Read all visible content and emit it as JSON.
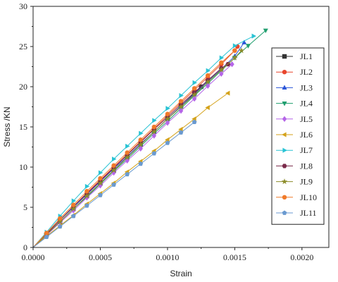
{
  "chart_data": {
    "type": "line",
    "xlabel": "Strain",
    "ylabel": "Stress /KN",
    "xlim": [
      0,
      0.0022
    ],
    "ylim": [
      0,
      30
    ],
    "xticks": [
      "0.0000",
      "0.0005",
      "0.0010",
      "0.0015",
      "0.0020"
    ],
    "yticks": [
      "0",
      "5",
      "10",
      "15",
      "20",
      "25",
      "30"
    ],
    "legend_position": "right",
    "series": [
      {
        "name": "JL1",
        "color": "#333333",
        "marker": "square",
        "x": [
          0,
          0.0001,
          0.0002,
          0.0003,
          0.0004,
          0.0005,
          0.0006,
          0.0007,
          0.0008,
          0.0009,
          0.001,
          0.0011,
          0.0012,
          0.00125
        ],
        "y": [
          0,
          1.6,
          3.2,
          4.8,
          6.4,
          8.0,
          9.6,
          11.2,
          12.8,
          14.4,
          16.0,
          17.6,
          19.2,
          20.0
        ]
      },
      {
        "name": "JL2",
        "color": "#e8452c",
        "marker": "circle",
        "x": [
          0,
          0.0001,
          0.0002,
          0.0003,
          0.0004,
          0.0005,
          0.0006,
          0.0007,
          0.0008,
          0.0009,
          0.001,
          0.0011,
          0.0012,
          0.0013,
          0.0014,
          0.0015,
          0.00152
        ],
        "y": [
          0,
          1.7,
          3.4,
          5.1,
          6.8,
          8.4,
          10.0,
          11.6,
          13.2,
          14.8,
          16.4,
          18.0,
          19.6,
          21.2,
          22.8,
          24.5,
          25.0
        ]
      },
      {
        "name": "JL3",
        "color": "#2a55d8",
        "marker": "triangle-up",
        "x": [
          0,
          0.0001,
          0.0002,
          0.0003,
          0.0004,
          0.0005,
          0.0006,
          0.0007,
          0.0008,
          0.0009,
          0.001,
          0.0011,
          0.0012,
          0.0013,
          0.0014,
          0.0015,
          0.00157
        ],
        "y": [
          0,
          1.7,
          3.4,
          5.0,
          6.6,
          8.2,
          9.8,
          11.3,
          12.9,
          14.4,
          16.0,
          17.6,
          19.1,
          20.7,
          22.2,
          23.8,
          25.5
        ]
      },
      {
        "name": "JL4",
        "color": "#1f9e6e",
        "marker": "triangle-down",
        "x": [
          0,
          0.0001,
          0.0002,
          0.0003,
          0.0004,
          0.0005,
          0.0006,
          0.0007,
          0.0008,
          0.0009,
          0.001,
          0.0011,
          0.0012,
          0.0013,
          0.0014,
          0.0015,
          0.0016,
          0.00173
        ],
        "y": [
          0,
          1.6,
          3.2,
          4.8,
          6.3,
          7.9,
          9.5,
          11.0,
          12.6,
          14.2,
          15.7,
          17.3,
          18.9,
          20.4,
          22.0,
          23.6,
          25.1,
          27.0
        ]
      },
      {
        "name": "JL5",
        "color": "#b565e8",
        "marker": "diamond",
        "x": [
          0,
          0.0001,
          0.0002,
          0.0003,
          0.0004,
          0.0005,
          0.0006,
          0.0007,
          0.0008,
          0.0009,
          0.001,
          0.0011,
          0.0012,
          0.0013,
          0.0014,
          0.00148
        ],
        "y": [
          0,
          1.5,
          3.1,
          4.6,
          6.2,
          7.7,
          9.3,
          10.8,
          12.3,
          13.9,
          15.5,
          17.0,
          18.5,
          20.1,
          21.6,
          22.8
        ]
      },
      {
        "name": "JL6",
        "color": "#d4a21a",
        "marker": "triangle-left",
        "x": [
          0,
          0.0001,
          0.0002,
          0.0003,
          0.0004,
          0.0005,
          0.0006,
          0.0007,
          0.0008,
          0.0009,
          0.001,
          0.0011,
          0.0012,
          0.0013,
          0.00145
        ],
        "y": [
          0,
          1.4,
          2.7,
          4.0,
          5.4,
          6.7,
          8.0,
          9.4,
          10.7,
          12.0,
          13.4,
          14.7,
          16.0,
          17.4,
          19.2
        ]
      },
      {
        "name": "JL7",
        "color": "#29c3d4",
        "marker": "triangle-right",
        "x": [
          0,
          0.0001,
          0.0002,
          0.0003,
          0.0004,
          0.0005,
          0.0006,
          0.0007,
          0.0008,
          0.0009,
          0.001,
          0.0011,
          0.0012,
          0.0013,
          0.0014,
          0.0015,
          0.00164
        ],
        "y": [
          0,
          1.9,
          3.9,
          5.8,
          7.6,
          9.3,
          11.0,
          12.6,
          14.2,
          15.8,
          17.3,
          18.9,
          20.5,
          22.0,
          23.6,
          25.1,
          26.3
        ]
      },
      {
        "name": "JL8",
        "color": "#7a2a4a",
        "marker": "hexagon",
        "x": [
          0,
          0.0001,
          0.0002,
          0.0003,
          0.0004,
          0.0005,
          0.0006,
          0.0007,
          0.0008,
          0.0009,
          0.001,
          0.0011,
          0.0012,
          0.0013,
          0.0014,
          0.00145
        ],
        "y": [
          0,
          1.7,
          3.4,
          5.1,
          6.7,
          8.3,
          9.9,
          11.5,
          13.1,
          14.7,
          16.2,
          17.8,
          19.3,
          20.8,
          22.3,
          22.8
        ]
      },
      {
        "name": "JL9",
        "color": "#8c8c2a",
        "marker": "star",
        "x": [
          0,
          0.0001,
          0.0002,
          0.0003,
          0.0004,
          0.0005,
          0.0006,
          0.0007,
          0.0008,
          0.0009,
          0.001,
          0.0011,
          0.0012,
          0.0013,
          0.0014,
          0.0015,
          0.00155
        ],
        "y": [
          0,
          1.6,
          3.2,
          4.8,
          6.4,
          8.0,
          9.6,
          11.2,
          12.8,
          14.4,
          16.0,
          17.5,
          19.0,
          20.6,
          22.1,
          23.6,
          24.5
        ]
      },
      {
        "name": "JL10",
        "color": "#f07a2a",
        "marker": "circle",
        "x": [
          0,
          0.0001,
          0.0002,
          0.0003,
          0.0004,
          0.0005,
          0.0006,
          0.0007,
          0.0008,
          0.0009,
          0.001,
          0.0011,
          0.0012,
          0.0013,
          0.0014,
          0.0015
        ],
        "y": [
          0,
          1.8,
          3.6,
          5.3,
          7.0,
          8.6,
          10.2,
          11.8,
          13.4,
          15.0,
          16.6,
          18.2,
          19.8,
          21.4,
          23.0,
          24.5
        ]
      },
      {
        "name": "JL11",
        "color": "#6a9ad0",
        "marker": "pentagon",
        "x": [
          0,
          0.0001,
          0.0002,
          0.0003,
          0.0004,
          0.0005,
          0.0006,
          0.0007,
          0.0008,
          0.0009,
          0.001,
          0.0011,
          0.0012
        ],
        "y": [
          0,
          1.3,
          2.6,
          3.9,
          5.2,
          6.5,
          7.8,
          9.1,
          10.4,
          11.7,
          13.0,
          14.3,
          15.6
        ]
      }
    ]
  }
}
